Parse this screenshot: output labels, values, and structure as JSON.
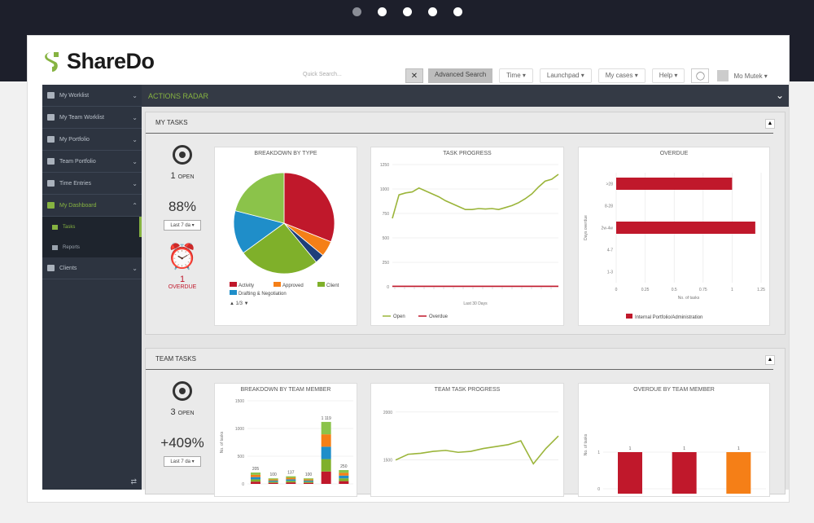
{
  "app": {
    "brand": "ShareDo",
    "accent": "#86b341",
    "danger": "#c0182b"
  },
  "carousel": {
    "active_index": 0,
    "count": 5
  },
  "toolbar": {
    "quick_search_placeholder": "Quick Search...",
    "clear_label": "✕",
    "advanced_search": "Advanced Search",
    "menus": [
      "Time ▾",
      "Launchpad ▾",
      "My cases ▾",
      "Help ▾"
    ],
    "user_name": "Mo Mutek ▾"
  },
  "sidebar": {
    "items": [
      {
        "label": "My Worklist"
      },
      {
        "label": "My Team Worklist"
      },
      {
        "label": "My Portfolio"
      },
      {
        "label": "Team Portfolio"
      },
      {
        "label": "Time Entries"
      },
      {
        "label": "My Dashboard"
      }
    ],
    "subitems": [
      {
        "label": "Tasks"
      },
      {
        "label": "Reports"
      }
    ],
    "last_item": {
      "label": "Clients"
    }
  },
  "radar": {
    "title": "ACTIONS RADAR"
  },
  "my_tasks": {
    "title": "MY TASKS",
    "open_count": "1",
    "open_label": "OPEN",
    "percent": "88%",
    "period": "Last 7 da ▾",
    "overdue_count": "1",
    "overdue_label": "OVERDUE"
  },
  "team_tasks": {
    "title": "TEAM TASKS",
    "open_count": "3",
    "open_label": "OPEN",
    "percent": "+409%",
    "period": "Last 7 da ▾"
  },
  "chart_data": [
    {
      "type": "pie",
      "title": "BREAKDOWN BY TYPE",
      "slices": [
        {
          "label": "Activity",
          "value": 31,
          "color": "#c0182b"
        },
        {
          "label": "Approved",
          "value": 5,
          "color": "#f57f17"
        },
        {
          "label": "",
          "value": 3,
          "color": "#1e3f7a"
        },
        {
          "label": "Client",
          "value": 26,
          "color": "#7fb02a"
        },
        {
          "label": "Drafting & Negotiation",
          "value": 14,
          "color": "#1f8ec9"
        },
        {
          "label": "",
          "value": 21,
          "color": "#8bc34a"
        }
      ],
      "legend": [
        "Activity",
        "Approved",
        "Client",
        "Drafting & Negotiation"
      ],
      "pager": "1/3"
    },
    {
      "type": "line",
      "title": "TASK PROGRESS",
      "xlabel": "Last 30 Days",
      "ylim": [
        0,
        1250
      ],
      "yticks": [
        "0",
        "250",
        "500",
        "750",
        "1000",
        "1250"
      ],
      "series": [
        {
          "name": "Open",
          "color": "#9bb53a",
          "values": [
            700,
            940,
            960,
            970,
            1010,
            980,
            950,
            920,
            880,
            850,
            820,
            790,
            790,
            800,
            795,
            800,
            790,
            810,
            830,
            860,
            900,
            950,
            1020,
            1080,
            1100,
            1150
          ]
        },
        {
          "name": "Overdue",
          "color": "#c0182b",
          "values": [
            5,
            5,
            5,
            5,
            5,
            5,
            5,
            5,
            5,
            5,
            5,
            5,
            5,
            5,
            5,
            5,
            5,
            5,
            5,
            5,
            5,
            5,
            5,
            5,
            5,
            5
          ]
        }
      ]
    },
    {
      "type": "bar",
      "title": "OVERDUE",
      "xlabel": "No. of tasks",
      "ylabel": "Days overdue",
      "categories": [
        ">28",
        "8-28",
        "2w-4w",
        "4-7",
        "1-3"
      ],
      "xticks": [
        "0",
        "0.25",
        "0.5",
        "0.75",
        "1",
        "1.25"
      ],
      "xlim": [
        0,
        1.25
      ],
      "series": [
        {
          "name": "Internal Portfolio/Administration",
          "color": "#c0182b",
          "values": [
            1,
            0,
            1.2,
            0,
            0
          ]
        }
      ]
    },
    {
      "type": "bar",
      "title": "BREAKDOWN BY TEAM MEMBER",
      "ylabel": "No. of tasks",
      "ylim": [
        0,
        1500
      ],
      "yticks": [
        "0",
        "500",
        "1000",
        "1500"
      ],
      "bars": [
        {
          "value": 205,
          "label": "205"
        },
        {
          "value": 100,
          "label": "100"
        },
        {
          "value": 137,
          "label": "137"
        },
        {
          "value": 100,
          "label": "100"
        },
        {
          "value": 1119,
          "label": "1 119"
        },
        {
          "value": 250,
          "label": "250"
        }
      ]
    },
    {
      "type": "line",
      "title": "TEAM TASK PROGRESS",
      "yticks": [
        "1500",
        "2000"
      ],
      "ylim": [
        1200,
        2100
      ],
      "series": [
        {
          "name": "Open",
          "color": "#9bb53a",
          "values": [
            1500,
            1560,
            1570,
            1590,
            1600,
            1580,
            1590,
            1620,
            1640,
            1660,
            1700,
            1460,
            1620,
            1750
          ]
        }
      ]
    },
    {
      "type": "bar",
      "title": "OVERDUE BY TEAM MEMBER",
      "ylabel": "No. of tasks",
      "yticks": [
        "0",
        "1"
      ],
      "bars": [
        {
          "value": 1,
          "label": "1",
          "color": "#c0182b"
        },
        {
          "value": 1,
          "label": "1",
          "color": "#c0182b"
        },
        {
          "value": 1,
          "label": "1",
          "color": "#f57f17"
        }
      ]
    }
  ]
}
